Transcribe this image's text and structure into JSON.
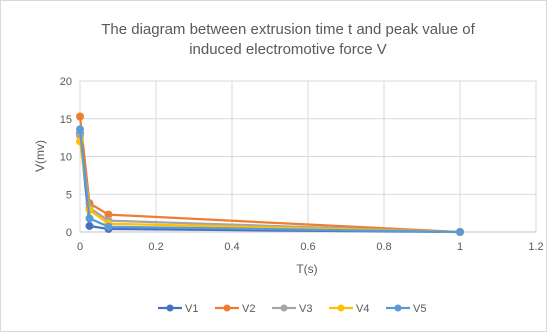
{
  "chart_data": {
    "type": "line",
    "title_line1": "The diagram between extrusion time t and peak value of",
    "title_line2": "induced electromotive force V",
    "xlabel": "T(s)",
    "ylabel": "V(mv)",
    "xlim": [
      0,
      1.2
    ],
    "ylim": [
      0,
      20
    ],
    "xticks": [
      0,
      0.2,
      0.4,
      0.6,
      0.8,
      1,
      1.2
    ],
    "xtick_labels": [
      "0",
      "0.2",
      "0.4",
      "0.6",
      "0.8",
      "1",
      "1.2"
    ],
    "yticks": [
      0,
      5,
      10,
      15,
      20
    ],
    "ytick_labels": [
      "0",
      "5",
      "10",
      "15",
      "20"
    ],
    "grid": true,
    "legend_position": "bottom",
    "x": [
      0,
      0.025,
      0.075,
      1
    ],
    "series": [
      {
        "name": "V1",
        "color": "#4472C4",
        "values": [
          13.0,
          0.8,
          0.4,
          0.0
        ]
      },
      {
        "name": "V2",
        "color": "#ED7D31",
        "values": [
          15.3,
          3.8,
          2.3,
          0.0
        ]
      },
      {
        "name": "V3",
        "color": "#A5A5A5",
        "values": [
          12.8,
          3.2,
          1.5,
          0.0
        ]
      },
      {
        "name": "V4",
        "color": "#FFC000",
        "values": [
          12.0,
          2.9,
          1.1,
          0.0
        ]
      },
      {
        "name": "V5",
        "color": "#5B9BD5",
        "values": [
          13.6,
          1.8,
          0.7,
          0.0
        ]
      }
    ]
  }
}
